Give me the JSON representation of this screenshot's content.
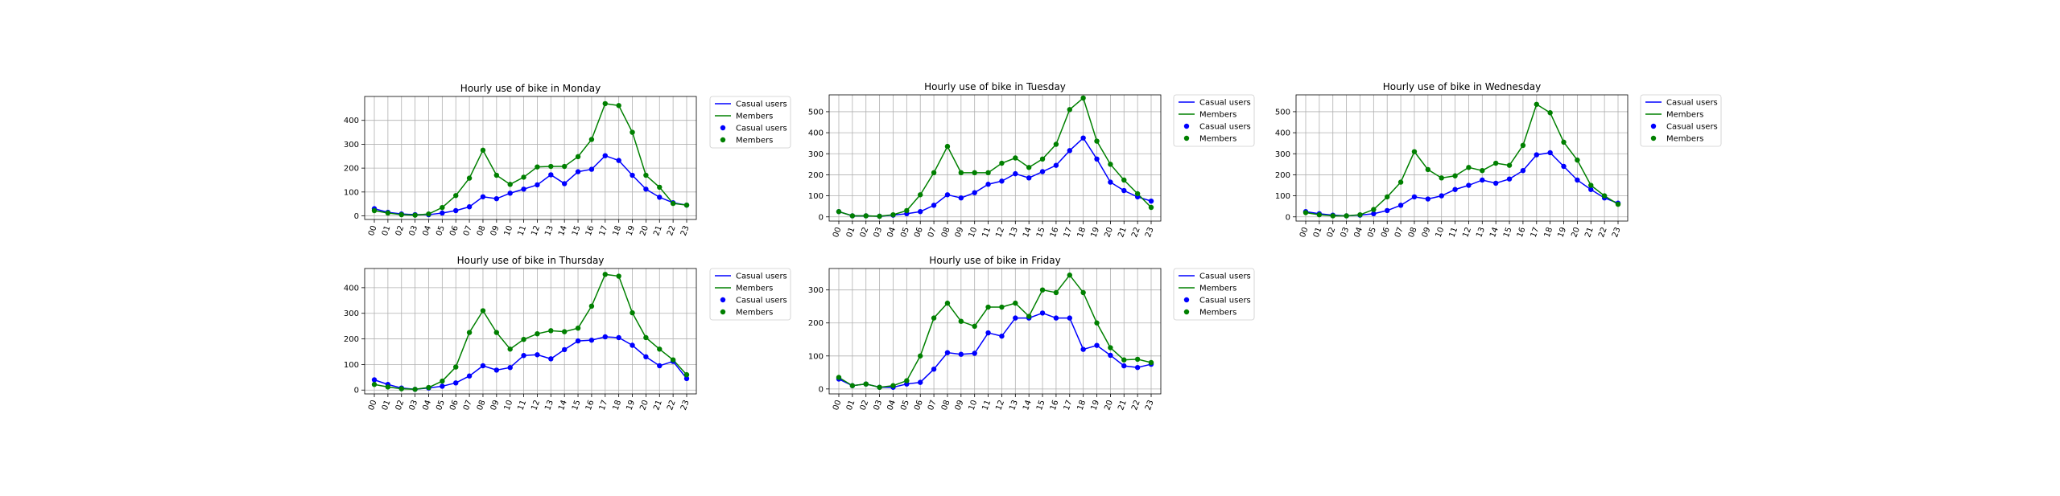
{
  "colors": {
    "casual": "#0000ff",
    "members": "#008000",
    "grid": "#b0b0b0"
  },
  "legend": {
    "labels": [
      "Casual users",
      "Members",
      "Casual users",
      "Members"
    ]
  },
  "hours": [
    "00",
    "01",
    "02",
    "03",
    "04",
    "05",
    "06",
    "07",
    "08",
    "09",
    "10",
    "11",
    "12",
    "13",
    "14",
    "15",
    "16",
    "17",
    "18",
    "19",
    "20",
    "21",
    "22",
    "23"
  ],
  "chart_data": [
    {
      "type": "line",
      "title": "Hourly use of bike in Monday",
      "ylim": [
        -15,
        500
      ],
      "yticks": [
        0,
        100,
        200,
        300,
        400
      ],
      "legend": "right-outside",
      "grid": true,
      "series": [
        {
          "name": "Casual users",
          "values": [
            30,
            15,
            8,
            5,
            5,
            12,
            22,
            38,
            80,
            72,
            95,
            112,
            130,
            172,
            135,
            185,
            195,
            252,
            232,
            170,
            112,
            78,
            55,
            45
          ]
        },
        {
          "name": "Members",
          "values": [
            22,
            12,
            5,
            3,
            8,
            35,
            85,
            158,
            275,
            170,
            132,
            162,
            205,
            207,
            207,
            248,
            320,
            470,
            462,
            350,
            170,
            120,
            52,
            45
          ]
        }
      ]
    },
    {
      "type": "line",
      "title": "Hourly use of bike in Tuesday",
      "ylim": [
        -20,
        580
      ],
      "yticks": [
        0,
        100,
        200,
        300,
        400,
        500
      ],
      "legend": "right-outside",
      "grid": true,
      "series": [
        {
          "name": "Casual users",
          "values": [
            25,
            5,
            5,
            3,
            8,
            15,
            25,
            55,
            105,
            90,
            115,
            155,
            170,
            205,
            185,
            215,
            245,
            315,
            375,
            275,
            165,
            125,
            95,
            75
          ]
        },
        {
          "name": "Members",
          "values": [
            25,
            5,
            5,
            3,
            10,
            30,
            105,
            210,
            335,
            210,
            210,
            210,
            255,
            280,
            235,
            275,
            345,
            510,
            565,
            360,
            250,
            175,
            110,
            45
          ]
        }
      ]
    },
    {
      "type": "line",
      "title": "Hourly use of bike in Wednesday",
      "ylim": [
        -20,
        580
      ],
      "yticks": [
        0,
        100,
        200,
        300,
        400,
        500
      ],
      "legend": "right-outside",
      "grid": true,
      "series": [
        {
          "name": "Casual users",
          "values": [
            25,
            15,
            8,
            5,
            8,
            15,
            30,
            55,
            95,
            85,
            100,
            130,
            150,
            175,
            160,
            180,
            220,
            295,
            305,
            240,
            175,
            130,
            90,
            65
          ]
        },
        {
          "name": "Members",
          "values": [
            20,
            10,
            5,
            5,
            10,
            35,
            95,
            165,
            310,
            225,
            185,
            195,
            235,
            220,
            255,
            245,
            340,
            535,
            495,
            355,
            270,
            150,
            100,
            60
          ]
        }
      ]
    },
    {
      "type": "line",
      "title": "Hourly use of bike in Thursday",
      "ylim": [
        -15,
        475
      ],
      "yticks": [
        0,
        100,
        200,
        300,
        400
      ],
      "legend": "right-outside",
      "grid": true,
      "series": [
        {
          "name": "Casual users",
          "values": [
            40,
            22,
            8,
            3,
            8,
            15,
            28,
            55,
            95,
            78,
            88,
            135,
            138,
            122,
            158,
            192,
            195,
            208,
            205,
            175,
            130,
            95,
            112,
            45
          ]
        },
        {
          "name": "Members",
          "values": [
            22,
            12,
            5,
            3,
            10,
            35,
            90,
            225,
            310,
            225,
            160,
            198,
            220,
            232,
            228,
            242,
            328,
            452,
            445,
            302,
            205,
            160,
            118,
            60
          ]
        }
      ]
    },
    {
      "type": "line",
      "title": "Hourly use of bike in Friday",
      "ylim": [
        -15,
        365
      ],
      "yticks": [
        0,
        100,
        200,
        300
      ],
      "legend": "right-outside",
      "grid": true,
      "series": [
        {
          "name": "Casual users",
          "values": [
            30,
            10,
            15,
            5,
            5,
            15,
            20,
            60,
            110,
            105,
            108,
            170,
            160,
            215,
            215,
            230,
            215,
            215,
            120,
            132,
            102,
            70,
            65,
            75
          ]
        },
        {
          "name": "Members",
          "values": [
            35,
            10,
            15,
            5,
            10,
            25,
            100,
            215,
            260,
            205,
            190,
            248,
            248,
            260,
            220,
            300,
            292,
            345,
            292,
            200,
            125,
            88,
            90,
            80
          ]
        }
      ]
    }
  ]
}
